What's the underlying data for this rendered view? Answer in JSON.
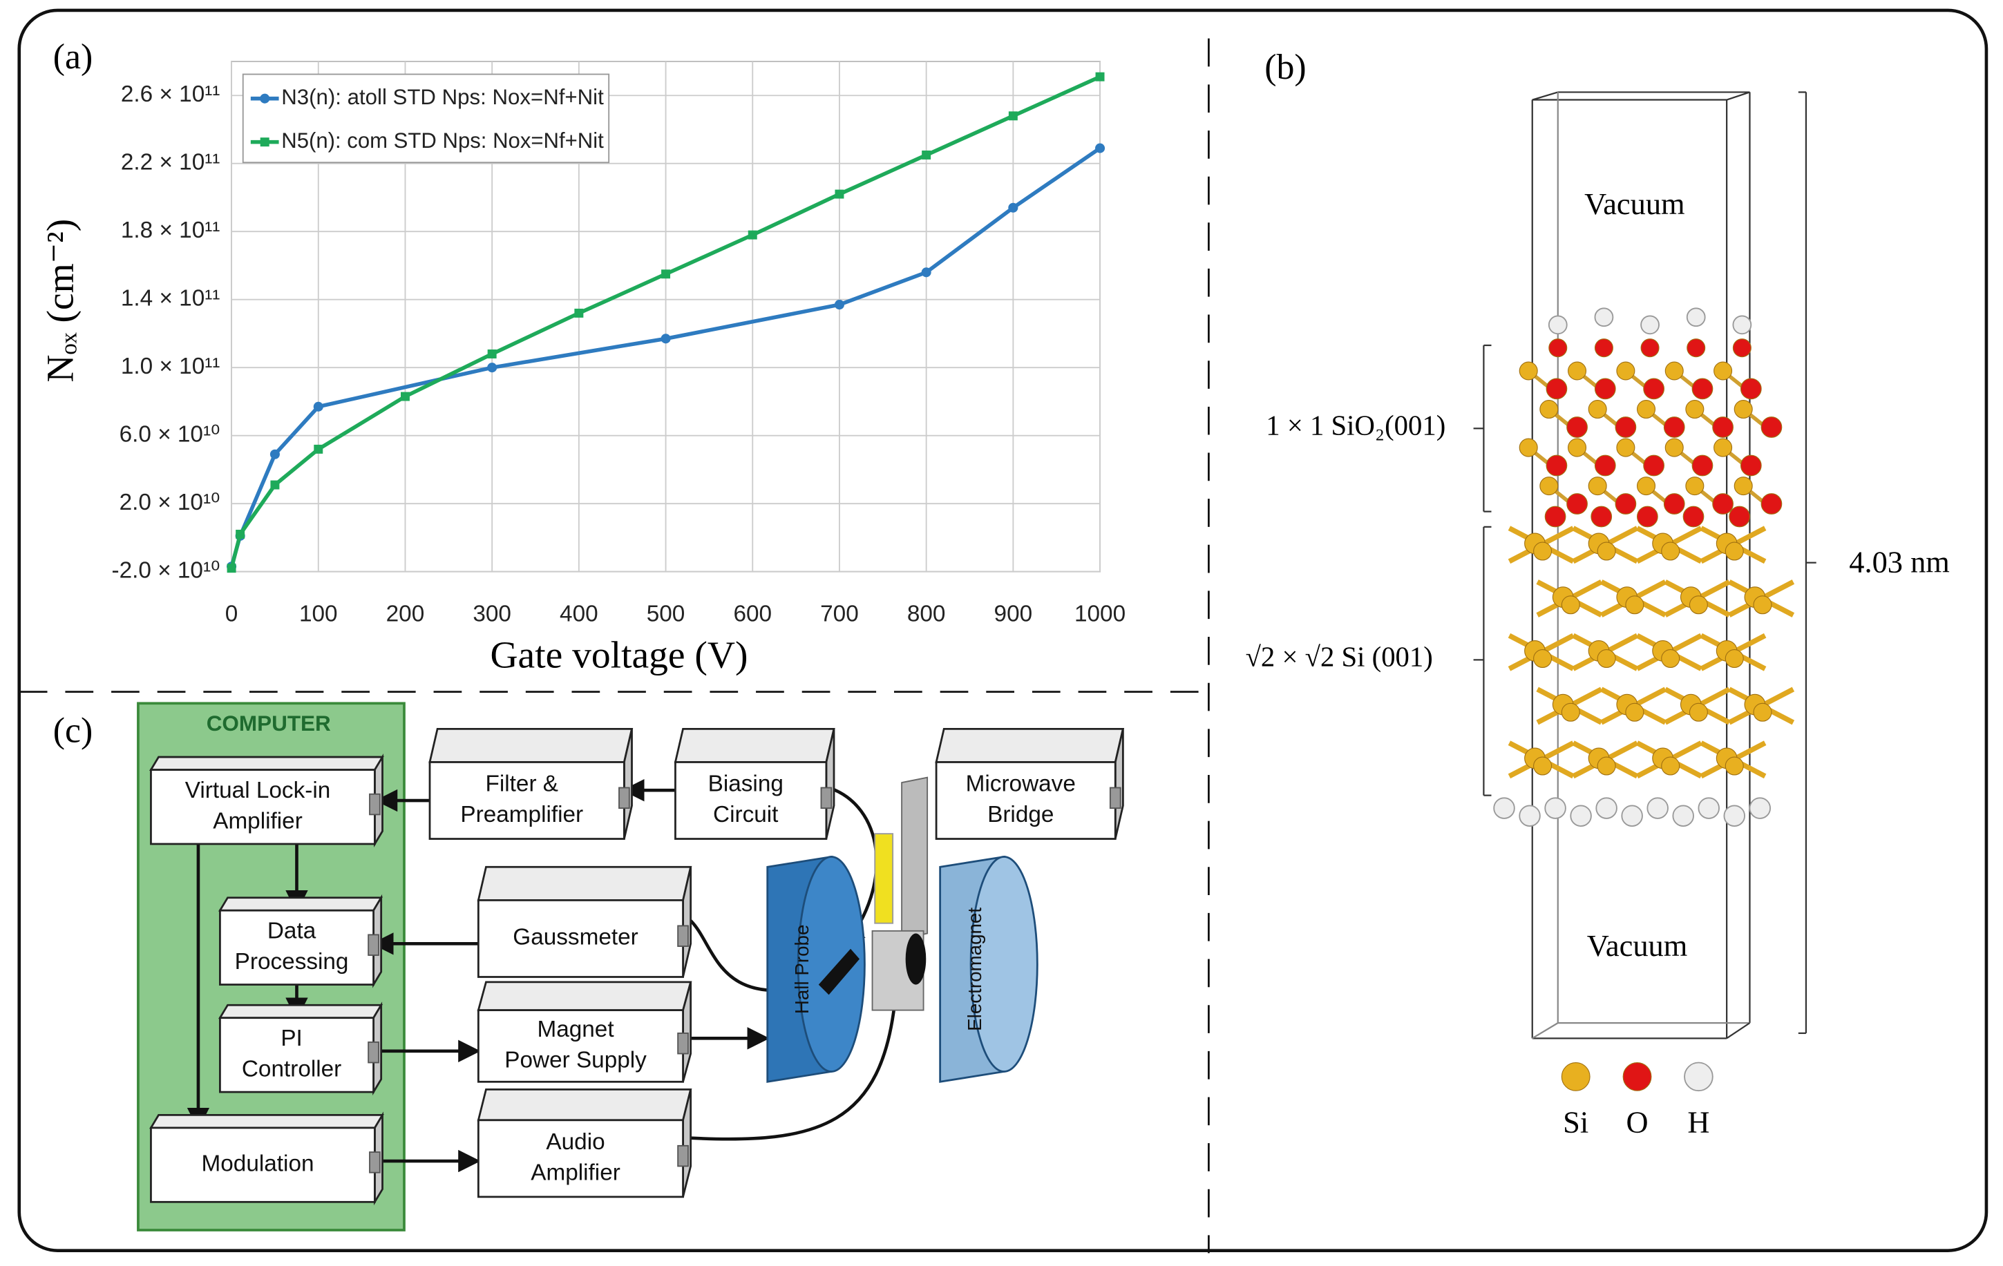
{
  "chart_data": {
    "type": "line",
    "panel_label": "(a)",
    "x_label": "Gate voltage (V)",
    "y_label": "Nₒₓ (cm⁻²)",
    "xlim": [
      0,
      1000
    ],
    "xticks": [
      0,
      100,
      200,
      300,
      400,
      500,
      600,
      700,
      800,
      900,
      1000
    ],
    "ylim": [
      -20000000000,
      280000000000
    ],
    "yticks": [
      {
        "value": -20000000000,
        "label": "-2.0 × 10¹⁰"
      },
      {
        "value": 20000000000,
        "label": "2.0 × 10¹⁰"
      },
      {
        "value": 60000000000,
        "label": "6.0 × 10¹⁰"
      },
      {
        "value": 100000000000,
        "label": "1.0 × 10¹¹"
      },
      {
        "value": 140000000000,
        "label": "1.4 × 10¹¹"
      },
      {
        "value": 180000000000,
        "label": "1.8 × 10¹¹"
      },
      {
        "value": 220000000000,
        "label": "2.2 × 10¹¹"
      },
      {
        "value": 260000000000,
        "label": "2.6 × 10¹¹"
      }
    ],
    "grid": true,
    "legend": "upper left",
    "series": [
      {
        "name": "N3(n): atoll STD Nps: Nox=Nf+Nit",
        "color": "#2e7bc0",
        "marker": "circle",
        "x": [
          0,
          10,
          50,
          100,
          300,
          500,
          700,
          800,
          900,
          1000
        ],
        "values": [
          -17000000000,
          1000000000,
          49000000000,
          77000000000,
          100000000000,
          117000000000,
          137000000000,
          156000000000,
          194000000000,
          229000000000
        ]
      },
      {
        "name": "N5(n): com STD Nps: Nox=Nf+Nit",
        "color": "#1eaa5a",
        "marker": "square",
        "x": [
          0,
          10,
          50,
          100,
          200,
          300,
          400,
          500,
          600,
          700,
          800,
          900,
          1000
        ],
        "values": [
          -18000000000,
          2000000000,
          31000000000,
          52000000000,
          83000000000,
          108000000000,
          132000000000,
          155000000000,
          178000000000,
          202000000000,
          225000000000,
          248000000000,
          271000000000
        ]
      }
    ]
  },
  "structure": {
    "label": "(b)",
    "vacuum_top": "Vacuum",
    "vacuum_bottom": "Vacuum",
    "sio2_layer": "1 × 1 SiO₂(001)",
    "si_layer": "√2 × √2 Si (001)",
    "height": "4.03 nm",
    "legend": [
      "Si",
      "O",
      "H"
    ]
  },
  "setup": {
    "label": "(c)",
    "computer": "COMPUTER",
    "boxes": [
      {
        "lines": [
          "Virtual Lock-in",
          "Amplifier"
        ]
      },
      {
        "lines": [
          "Data",
          "Processing"
        ]
      },
      {
        "lines": [
          "PI",
          "Controller"
        ]
      },
      {
        "lines": [
          "Modulation"
        ]
      },
      {
        "lines": [
          "Filter &",
          "Preamplifier"
        ]
      },
      {
        "lines": [
          "Biasing",
          "Circuit"
        ]
      },
      {
        "lines": [
          "Microwave",
          "Bridge"
        ]
      },
      {
        "lines": [
          "Gaussmeter"
        ]
      },
      {
        "lines": [
          "Magnet",
          "Power Supply"
        ]
      },
      {
        "lines": [
          "Audio",
          "Amplifier"
        ]
      }
    ],
    "hall_probe": "Hall Probe",
    "electromagnet": "Electromagnet"
  }
}
